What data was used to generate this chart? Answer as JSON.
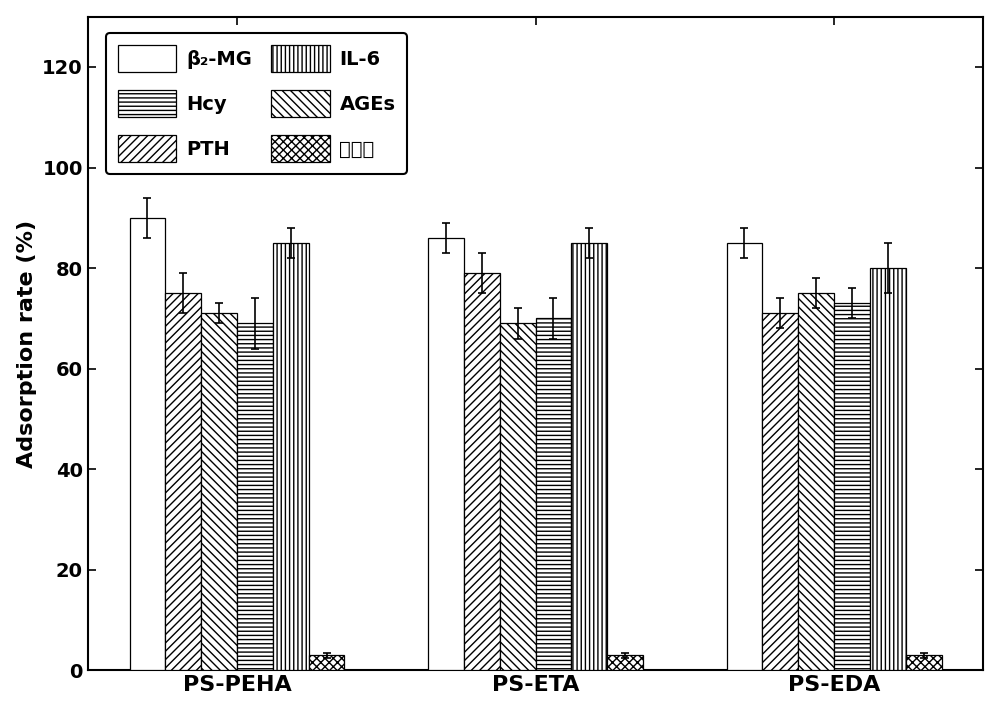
{
  "groups": [
    "PS-PEHA",
    "PS-ETA",
    "PS-EDA"
  ],
  "series": [
    {
      "label": "β₂-MG",
      "hatch": "",
      "facecolor": "white",
      "edgecolor": "black",
      "values": [
        90,
        86,
        85
      ],
      "errors": [
        4,
        3,
        3
      ]
    },
    {
      "label": "PTH",
      "hatch": "////",
      "facecolor": "white",
      "edgecolor": "black",
      "values": [
        75,
        79,
        71
      ],
      "errors": [
        4,
        4,
        3
      ]
    },
    {
      "label": "AGEs",
      "hatch": "\\\\\\\\",
      "facecolor": "white",
      "edgecolor": "black",
      "values": [
        71,
        69,
        75
      ],
      "errors": [
        2,
        3,
        3
      ]
    },
    {
      "label": "Hcy",
      "hatch": "----",
      "facecolor": "white",
      "edgecolor": "black",
      "values": [
        69,
        70,
        73
      ],
      "errors": [
        5,
        4,
        3
      ]
    },
    {
      "label": "IL-6",
      "hatch": "||||",
      "facecolor": "white",
      "edgecolor": "black",
      "values": [
        85,
        85,
        80
      ],
      "errors": [
        3,
        3,
        5
      ]
    },
    {
      "label": "总蛋白",
      "hatch": "xxxx",
      "facecolor": "white",
      "edgecolor": "black",
      "values": [
        3,
        3,
        3
      ],
      "errors": [
        0.5,
        0.5,
        0.5
      ]
    }
  ],
  "ylabel": "Adsorption rate (%)",
  "ylim": [
    0,
    130
  ],
  "yticks": [
    0,
    20,
    40,
    60,
    80,
    100,
    120
  ],
  "bar_width": 0.12,
  "figsize": [
    10.0,
    7.12
  ],
  "dpi": 100,
  "legend_order": [
    0,
    3,
    1,
    4,
    2,
    5
  ],
  "legend_labels_reordered": [
    "β₂-MG",
    "Hcy",
    "PTH",
    "IL-6",
    "AGEs",
    "总蛋白"
  ]
}
